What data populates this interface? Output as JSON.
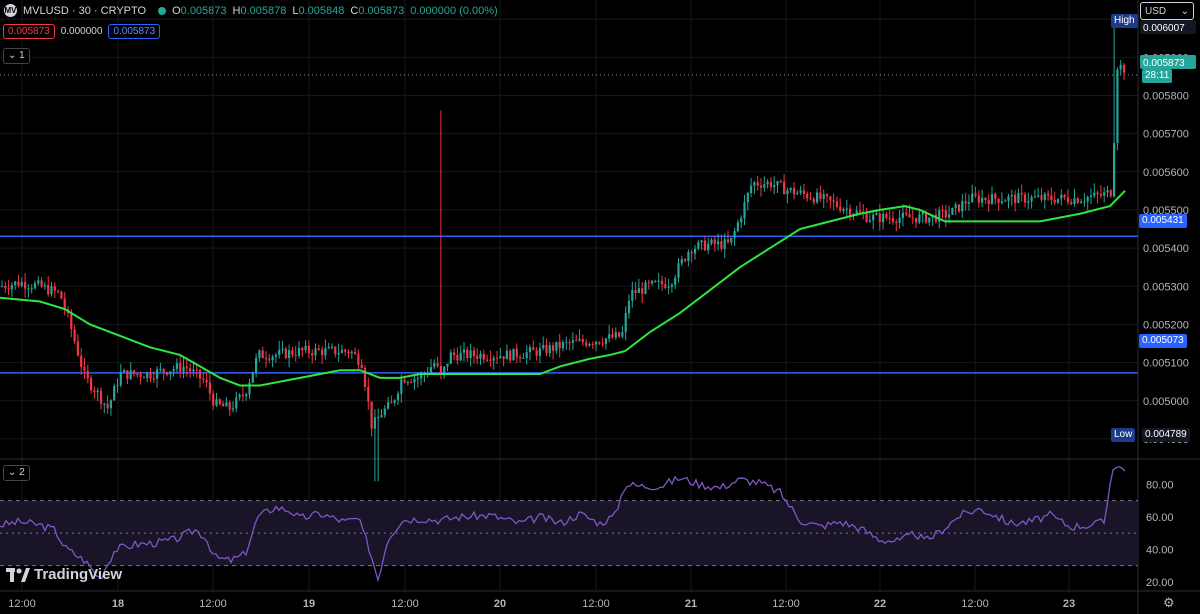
{
  "header": {
    "symbol_icon": "MV",
    "title": "MVLUSD · 30 · CRYPTO",
    "o": "O",
    "o_val": "0.005873",
    "h": "H",
    "h_val": "0.005878",
    "l": "L",
    "l_val": "0.005848",
    "c": "C",
    "c_val": "0.005873",
    "change": "0.000000 (0.00%)",
    "bid": "0.005873",
    "spread": "0.000000",
    "ask": "0.005873",
    "pane1_tag": "1",
    "pane2_tag": "2"
  },
  "currency": "USD",
  "watermark": "TradingView",
  "price_axis": {
    "ticks": [
      "0.006000",
      "0.005900",
      "0.005800",
      "0.005700",
      "0.005600",
      "0.005500",
      "0.005400",
      "0.005300",
      "0.005200",
      "0.005100",
      "0.005000",
      "0.004900"
    ],
    "high_label": "High",
    "high_value": "0.006007",
    "low_label": "Low",
    "low_value": "0.004789",
    "current_price": "0.005873",
    "countdown": "28:11",
    "hline1": "0.005431",
    "hline2": "0.005073"
  },
  "rsi_axis": {
    "ticks": [
      "80.00",
      "60.00",
      "40.00",
      "20.00"
    ],
    "upper_band": 70,
    "lower_band": 30,
    "mid": 50
  },
  "time_axis": [
    "12:00",
    "18",
    "12:00",
    "19",
    "12:00",
    "20",
    "12:00",
    "21",
    "12:00",
    "22",
    "12:00",
    "23"
  ],
  "colors": {
    "up": "#26a69a",
    "down": "#f23645",
    "ma": "#2ee63d",
    "hline": "#2962ff",
    "rsi": "#7e57c2",
    "rsi_band": "#1a1428"
  },
  "chart_data": {
    "type": "candlestick",
    "ylim": [
      0.00485,
      0.00605
    ],
    "rsi_ylim": [
      15,
      95
    ],
    "hlines": [
      0.005431,
      0.005073
    ],
    "ma_line": [
      [
        0,
        0.00527
      ],
      [
        40,
        0.00526
      ],
      [
        65,
        0.00524
      ],
      [
        90,
        0.0052
      ],
      [
        120,
        0.00517
      ],
      [
        150,
        0.00514
      ],
      [
        180,
        0.00512
      ],
      [
        200,
        0.00509
      ],
      [
        220,
        0.00506
      ],
      [
        240,
        0.00504
      ],
      [
        260,
        0.00504
      ],
      [
        300,
        0.00506
      ],
      [
        340,
        0.00508
      ],
      [
        360,
        0.00508
      ],
      [
        380,
        0.00506
      ],
      [
        400,
        0.00506
      ],
      [
        420,
        0.00507
      ],
      [
        440,
        0.00507
      ],
      [
        460,
        0.00507
      ],
      [
        490,
        0.00507
      ],
      [
        520,
        0.00507
      ],
      [
        540,
        0.00507
      ],
      [
        560,
        0.00509
      ],
      [
        590,
        0.00511
      ],
      [
        610,
        0.00512
      ],
      [
        625,
        0.00513
      ],
      [
        650,
        0.00518
      ],
      [
        680,
        0.00523
      ],
      [
        710,
        0.00529
      ],
      [
        740,
        0.00535
      ],
      [
        770,
        0.0054
      ],
      [
        800,
        0.00545
      ],
      [
        830,
        0.00547
      ],
      [
        860,
        0.00549
      ],
      [
        880,
        0.0055
      ],
      [
        905,
        0.00551
      ],
      [
        920,
        0.0055
      ],
      [
        945,
        0.00547
      ],
      [
        970,
        0.00547
      ],
      [
        1000,
        0.00547
      ],
      [
        1040,
        0.00547
      ],
      [
        1080,
        0.00549
      ],
      [
        1110,
        0.00551
      ],
      [
        1125,
        0.00555
      ]
    ],
    "close_path": [
      [
        0,
        0.0053
      ],
      [
        20,
        0.00531
      ],
      [
        40,
        0.0053
      ],
      [
        60,
        0.00528
      ],
      [
        70,
        0.0052
      ],
      [
        85,
        0.00506
      ],
      [
        95,
        0.00503
      ],
      [
        108,
        0.00498
      ],
      [
        120,
        0.00507
      ],
      [
        135,
        0.00507
      ],
      [
        150,
        0.00507
      ],
      [
        165,
        0.00508
      ],
      [
        185,
        0.00509
      ],
      [
        205,
        0.00505
      ],
      [
        215,
        0.00499
      ],
      [
        230,
        0.00498
      ],
      [
        245,
        0.00502
      ],
      [
        258,
        0.00512
      ],
      [
        275,
        0.00512
      ],
      [
        300,
        0.00513
      ],
      [
        330,
        0.00513
      ],
      [
        350,
        0.00513
      ],
      [
        362,
        0.0051
      ],
      [
        372,
        0.00493
      ],
      [
        382,
        0.00497
      ],
      [
        392,
        0.00499
      ],
      [
        402,
        0.00506
      ],
      [
        420,
        0.00506
      ],
      [
        435,
        0.0051
      ],
      [
        441,
        0.00506
      ],
      [
        450,
        0.00512
      ],
      [
        480,
        0.00512
      ],
      [
        510,
        0.00512
      ],
      [
        540,
        0.00513
      ],
      [
        570,
        0.00515
      ],
      [
        600,
        0.00516
      ],
      [
        622,
        0.00517
      ],
      [
        630,
        0.00528
      ],
      [
        650,
        0.0053
      ],
      [
        670,
        0.00531
      ],
      [
        690,
        0.0054
      ],
      [
        710,
        0.00541
      ],
      [
        730,
        0.00541
      ],
      [
        740,
        0.00548
      ],
      [
        752,
        0.00557
      ],
      [
        770,
        0.00557
      ],
      [
        790,
        0.00555
      ],
      [
        820,
        0.00553
      ],
      [
        850,
        0.0055
      ],
      [
        870,
        0.00548
      ],
      [
        900,
        0.00548
      ],
      [
        930,
        0.00548
      ],
      [
        950,
        0.00549
      ],
      [
        970,
        0.00553
      ],
      [
        1000,
        0.00553
      ],
      [
        1040,
        0.00553
      ],
      [
        1080,
        0.00553
      ],
      [
        1105,
        0.00554
      ],
      [
        1112,
        0.00555
      ],
      [
        1117,
        0.00588
      ],
      [
        1125,
        0.00587
      ]
    ],
    "spike": {
      "x": 440,
      "high": 0.00576
    },
    "high_spike": {
      "x": 1113,
      "high": 0.006007
    },
    "rsi_path": [
      [
        0,
        55
      ],
      [
        20,
        57
      ],
      [
        40,
        55
      ],
      [
        55,
        52
      ],
      [
        65,
        41
      ],
      [
        85,
        33
      ],
      [
        100,
        22
      ],
      [
        115,
        40
      ],
      [
        135,
        43
      ],
      [
        155,
        44
      ],
      [
        175,
        46
      ],
      [
        195,
        52
      ],
      [
        205,
        48
      ],
      [
        215,
        35
      ],
      [
        230,
        33
      ],
      [
        245,
        37
      ],
      [
        258,
        60
      ],
      [
        275,
        66
      ],
      [
        290,
        64
      ],
      [
        300,
        59
      ],
      [
        320,
        62
      ],
      [
        345,
        57
      ],
      [
        358,
        59
      ],
      [
        368,
        43
      ],
      [
        378,
        22
      ],
      [
        388,
        47
      ],
      [
        402,
        58
      ],
      [
        420,
        59
      ],
      [
        440,
        58
      ],
      [
        460,
        60
      ],
      [
        490,
        61
      ],
      [
        520,
        56
      ],
      [
        540,
        60
      ],
      [
        560,
        56
      ],
      [
        580,
        62
      ],
      [
        600,
        56
      ],
      [
        615,
        61
      ],
      [
        625,
        80
      ],
      [
        640,
        79
      ],
      [
        660,
        79
      ],
      [
        680,
        84
      ],
      [
        700,
        80
      ],
      [
        720,
        78
      ],
      [
        740,
        83
      ],
      [
        760,
        81
      ],
      [
        780,
        75
      ],
      [
        800,
        58
      ],
      [
        820,
        54
      ],
      [
        840,
        57
      ],
      [
        860,
        53
      ],
      [
        880,
        46
      ],
      [
        900,
        45
      ],
      [
        915,
        50
      ],
      [
        925,
        45
      ],
      [
        940,
        51
      ],
      [
        960,
        61
      ],
      [
        980,
        65
      ],
      [
        995,
        61
      ],
      [
        1010,
        56
      ],
      [
        1030,
        57
      ],
      [
        1050,
        61
      ],
      [
        1070,
        54
      ],
      [
        1090,
        55
      ],
      [
        1105,
        57
      ],
      [
        1112,
        91
      ],
      [
        1125,
        90
      ]
    ]
  }
}
